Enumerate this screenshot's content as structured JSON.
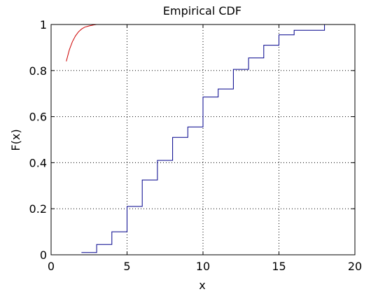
{
  "chart_data": {
    "type": "line",
    "title": "Empirical CDF",
    "xlabel": "x",
    "ylabel": "F(x)",
    "xlim": [
      0,
      20
    ],
    "ylim": [
      0,
      1
    ],
    "grid": true,
    "grid_style": "dotted",
    "x_ticks": [
      0,
      5,
      10,
      15,
      20
    ],
    "x_tick_labels": [
      "0",
      "5",
      "10",
      "15",
      "20"
    ],
    "y_ticks": [
      0,
      0.2,
      0.4,
      0.6,
      0.8,
      1
    ],
    "y_tick_labels": [
      "0",
      "0.2",
      "0.4",
      "0.6",
      "0.8",
      "1"
    ],
    "series": [
      {
        "style": "stairs",
        "color": "#00008b",
        "x": [
          2,
          3,
          4,
          5,
          6,
          7,
          8,
          9,
          10,
          11,
          12,
          13,
          14,
          15,
          16,
          17,
          18
        ],
        "y": [
          0.01,
          0.045,
          0.1,
          0.21,
          0.325,
          0.41,
          0.51,
          0.555,
          0.685,
          0.72,
          0.805,
          0.855,
          0.91,
          0.955,
          0.975,
          0.975,
          1.0
        ]
      },
      {
        "style": "line",
        "color": "#cc0000",
        "x": [
          1.0,
          1.2,
          1.4,
          1.6,
          1.8,
          2.0,
          2.2,
          2.5,
          2.8,
          3.0
        ],
        "y": [
          0.84,
          0.89,
          0.925,
          0.95,
          0.968,
          0.98,
          0.988,
          0.994,
          0.998,
          1.0
        ]
      }
    ]
  }
}
